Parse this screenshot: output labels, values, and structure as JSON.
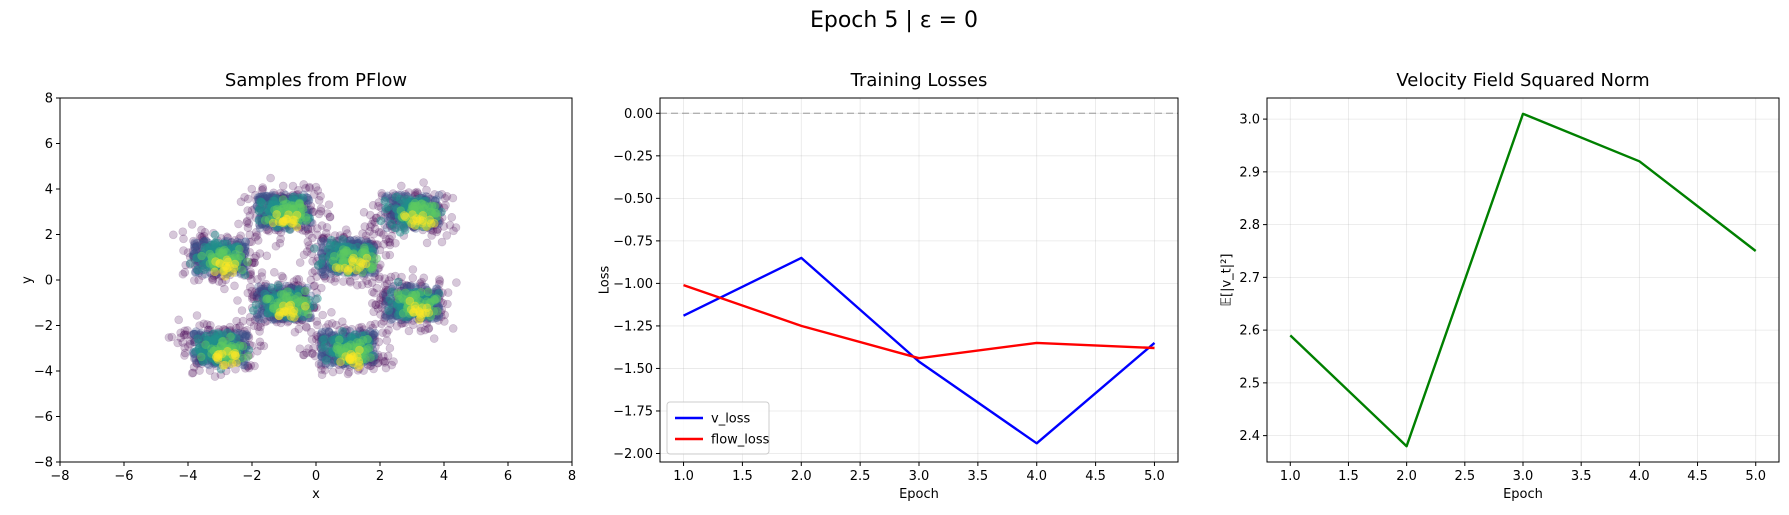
{
  "suptitle": "Epoch 5 | ε = 0",
  "chart_data": [
    {
      "type": "scatter",
      "title": "Samples from PFlow",
      "xlabel": "x",
      "ylabel": "y",
      "xlim": [
        -8,
        8
      ],
      "ylim": [
        -8,
        8
      ],
      "xticks": [
        "−8",
        "−6",
        "−4",
        "−2",
        "0",
        "2",
        "4",
        "6",
        "8"
      ],
      "yticks": [
        "−8",
        "−6",
        "−4",
        "−2",
        "0",
        "2",
        "4",
        "6",
        "8"
      ],
      "grid": false,
      "clusters": [
        {
          "center": [
            -3,
            1
          ]
        },
        {
          "center": [
            -1,
            3
          ]
        },
        {
          "center": [
            1,
            1
          ]
        },
        {
          "center": [
            3,
            3
          ]
        },
        {
          "center": [
            -3,
            -3
          ]
        },
        {
          "center": [
            -1,
            -1
          ]
        },
        {
          "center": [
            1,
            -3
          ]
        },
        {
          "center": [
            3,
            -1
          ]
        }
      ],
      "colormap": [
        "#440154",
        "#3b528b",
        "#21918c",
        "#5ec962",
        "#fde725"
      ]
    },
    {
      "type": "line",
      "title": "Training Losses",
      "xlabel": "Epoch",
      "ylabel": "Loss",
      "xlim": [
        0.8,
        5.2
      ],
      "ylim": [
        -2.05,
        0.09
      ],
      "xticks": [
        "1.0",
        "1.5",
        "2.0",
        "2.5",
        "3.0",
        "3.5",
        "4.0",
        "4.5",
        "5.0"
      ],
      "yticks": [
        "0.00",
        "−0.25",
        "−0.50",
        "−0.75",
        "−1.00",
        "−1.25",
        "−1.50",
        "−1.75",
        "−2.00"
      ],
      "grid": true,
      "legend": "lower-left",
      "x": [
        1,
        2,
        3,
        4,
        5
      ],
      "series": [
        {
          "name": "v_loss",
          "color": "#0000ff",
          "values": [
            -1.19,
            -0.85,
            -1.46,
            -1.94,
            -1.35
          ]
        },
        {
          "name": "flow_loss",
          "color": "#ff0000",
          "values": [
            -1.01,
            -1.25,
            -1.44,
            -1.35,
            -1.38
          ]
        }
      ],
      "reference_line": {
        "y": 0,
        "color": "#808080"
      }
    },
    {
      "type": "line",
      "title": "Velocity Field Squared Norm",
      "xlabel": "Epoch",
      "ylabel": "𝔼[|v_t|²]",
      "xlim": [
        0.8,
        5.2
      ],
      "ylim": [
        2.35,
        3.04
      ],
      "xticks": [
        "1.0",
        "1.5",
        "2.0",
        "2.5",
        "3.0",
        "3.5",
        "4.0",
        "4.5",
        "5.0"
      ],
      "yticks": [
        "2.4",
        "2.5",
        "2.6",
        "2.7",
        "2.8",
        "2.9",
        "3.0"
      ],
      "grid": true,
      "x": [
        1,
        2,
        3,
        4,
        5
      ],
      "series": [
        {
          "color": "#008000",
          "values": [
            2.59,
            2.38,
            3.01,
            2.92,
            2.75
          ]
        }
      ]
    }
  ]
}
